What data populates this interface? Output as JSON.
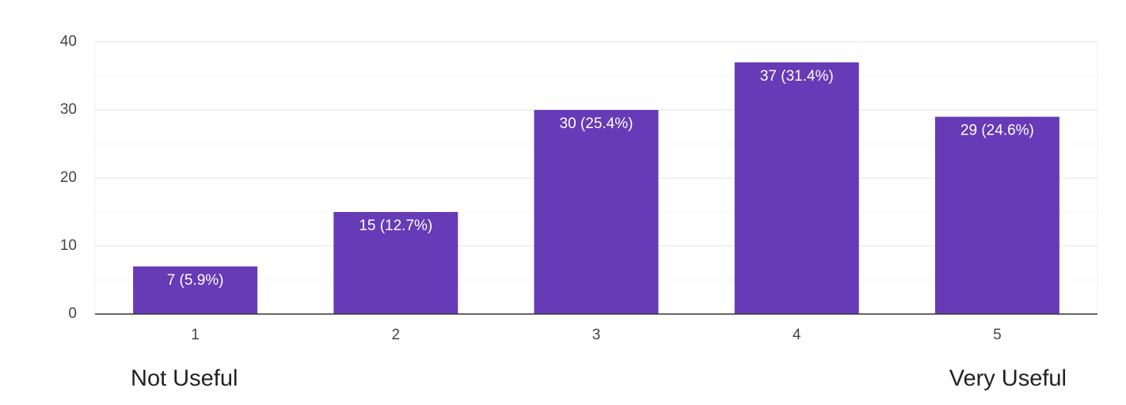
{
  "chart_data": {
    "type": "bar",
    "categories": [
      "1",
      "2",
      "3",
      "4",
      "5"
    ],
    "values": [
      7,
      15,
      30,
      37,
      29
    ],
    "value_labels": [
      "7 (5.9%)",
      "15 (12.7%)",
      "30 (25.4%)",
      "37 (31.4%)",
      "29 (24.6%)"
    ],
    "color": "#673ab7",
    "ylim": [
      0,
      40
    ],
    "yticks": [
      0,
      10,
      20,
      30,
      40
    ],
    "minor_yticks": [
      5,
      15,
      25,
      35
    ],
    "grid": true,
    "scale_labels": {
      "low": "Not Useful",
      "high": "Very Useful"
    }
  }
}
